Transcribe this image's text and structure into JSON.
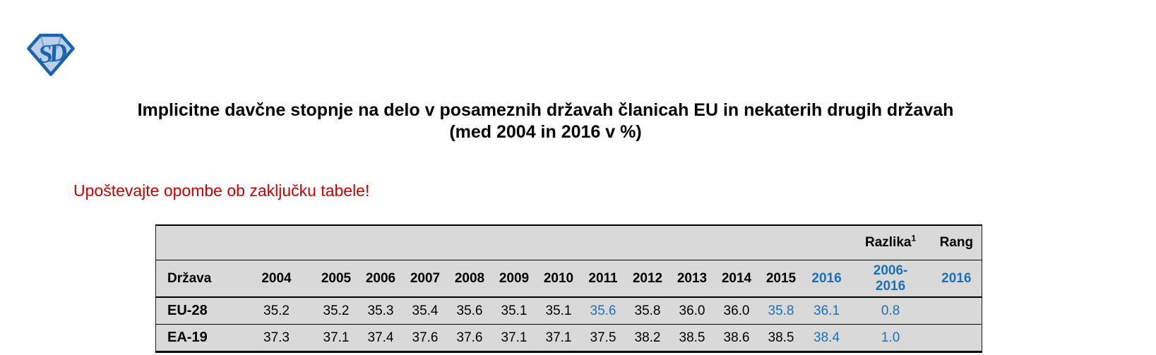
{
  "logo": {
    "letters": "SD",
    "outline_color": "#1b63ad",
    "fill_color": "#bccfe8"
  },
  "title": {
    "line1": "Implicitne davčne stopnje na delo v posameznih državah članicah EU in nekaterih drugih državah",
    "line2": "(med 2004 in 2016 v %)"
  },
  "note": "Upoštevajte opombe ob zaključku tabele!",
  "table": {
    "col_country": "Država",
    "years": [
      "2004",
      "2005",
      "2006",
      "2007",
      "2008",
      "2009",
      "2010",
      "2011",
      "2012",
      "2013",
      "2014",
      "2015",
      "2016"
    ],
    "razlika_header": "Razlika",
    "razlika_sup": "1",
    "razlika_period_line1": "2006-",
    "razlika_period_line2": "2016",
    "rang_header": "Rang",
    "rang_year": "2016",
    "rows": [
      {
        "label": "EU-28",
        "values": [
          "35.2",
          "35.2",
          "35.3",
          "35.4",
          "35.6",
          "35.1",
          "35.1",
          "35.6",
          "35.8",
          "36.0",
          "36.0",
          "35.8",
          "36.1"
        ],
        "blue_value_indices": [
          7,
          11,
          12
        ],
        "razlika": "0.8",
        "rang": ""
      },
      {
        "label": "EA-19",
        "values": [
          "37.3",
          "37.1",
          "37.4",
          "37.6",
          "37.6",
          "37.1",
          "37.1",
          "37.5",
          "38.2",
          "38.5",
          "38.6",
          "38.5",
          "38.4"
        ],
        "blue_value_indices": [
          12
        ],
        "razlika": "1.0",
        "rang": ""
      }
    ]
  },
  "colors": {
    "accent_blue": "#1B71B8",
    "note_red": "#CC0000",
    "table_background": "#D9D9D9",
    "border_black": "#000000",
    "logo_blue": "#1b63ad",
    "logo_fill": "#bccfe8"
  }
}
